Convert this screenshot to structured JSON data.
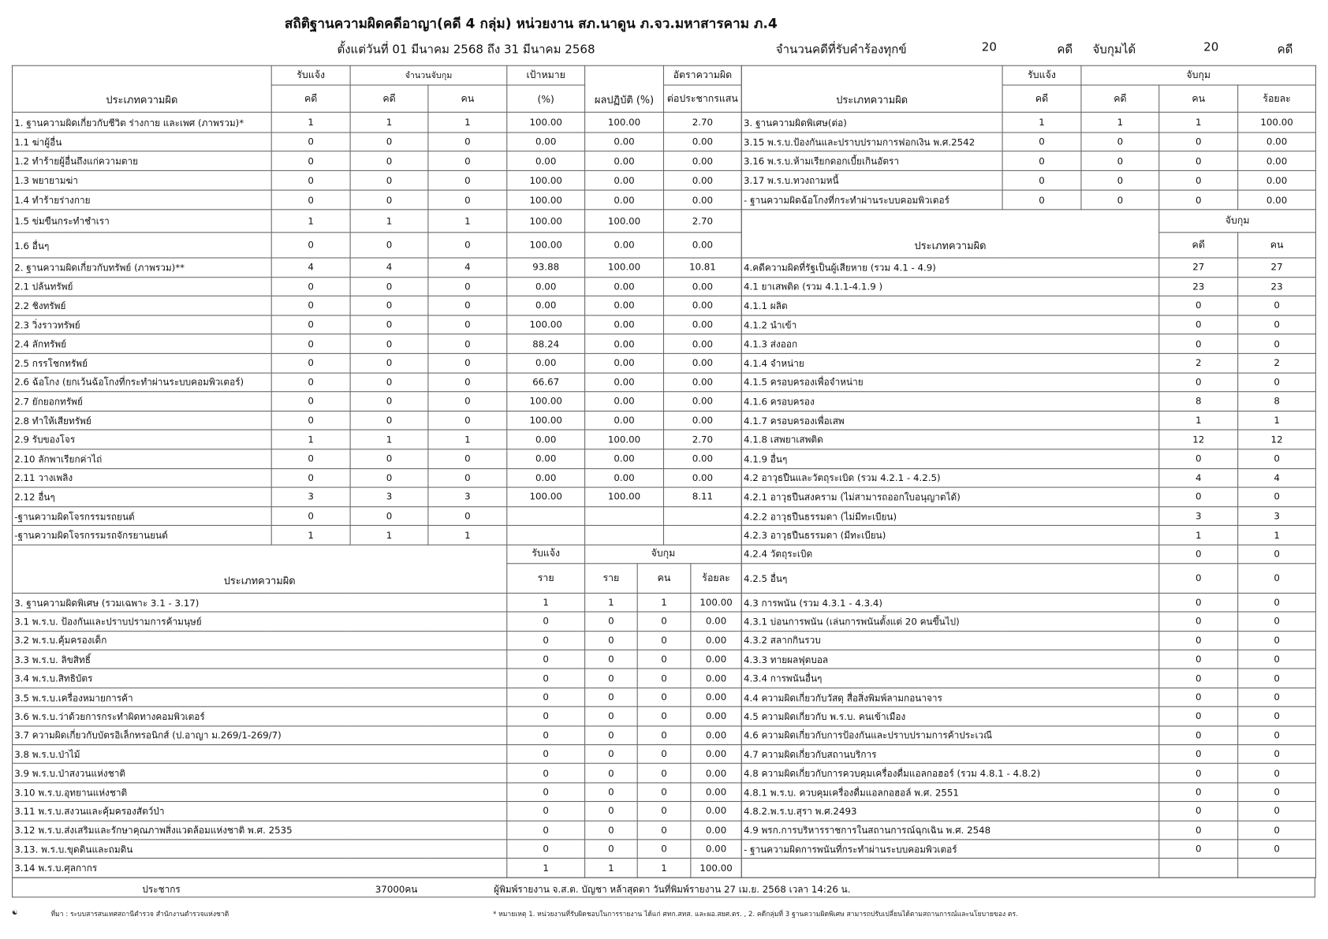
{
  "title": "สถิติฐานความผิดคดีอาญา(คดี 4 กลุ่ม) หน่วยงาน สภ.นาดูน ภ.จว.มหาสารคาม ภ.4",
  "period": "ตั้งแต่วันที่ 01 มีนาคม 2568 ถึง 31 มีนาคม 2568",
  "summary": {
    "received_label": "จำนวนคดีที่รับคำร้องทุกข์",
    "received": "20",
    "unit1": "คดี",
    "arrested_label": "จับกุมได้",
    "arrested": "20",
    "unit2": "คดี"
  },
  "left_header": {
    "type": "ประเภทความผิด",
    "received": "รับแจ้ง",
    "arrest_count": "จำนวนจับกุม",
    "target": "เป้าหมาย",
    "result": "ผลปฏิบัติ (%)",
    "rate": "อัตราความผิด",
    "case": "คดี",
    "case2": "คดี",
    "person": "คน",
    "percent": "(%)",
    "per_pop": "ต่อประชากรแสน"
  },
  "sec1": [
    [
      "1. ฐานความผิดเกี่ยวกับชีวิต ร่างกาย และเพศ (ภาพรวม)*",
      "1",
      "1",
      "1",
      "100.00",
      "100.00",
      "2.70"
    ],
    [
      "1.1 ฆ่าผู้อื่น",
      "0",
      "0",
      "0",
      "0.00",
      "0.00",
      "0.00"
    ],
    [
      "1.2 ทำร้ายผู้อื่นถึงแก่ความตาย",
      "0",
      "0",
      "0",
      "0.00",
      "0.00",
      "0.00"
    ],
    [
      "1.3 พยายามฆ่า",
      "0",
      "0",
      "0",
      "100.00",
      "0.00",
      "0.00"
    ],
    [
      "1.4 ทำร้ายร่างกาย",
      "0",
      "0",
      "0",
      "100.00",
      "0.00",
      "0.00"
    ],
    [
      "1.5 ข่มขืนกระทำชำเรา",
      "1",
      "1",
      "1",
      "100.00",
      "100.00",
      "2.70"
    ],
    [
      "1.6 อื่นๆ",
      "0",
      "0",
      "0",
      "100.00",
      "0.00",
      "0.00"
    ]
  ],
  "sec2": [
    [
      "2. ฐานความผิดเกี่ยวกับทรัพย์ (ภาพรวม)**",
      "4",
      "4",
      "4",
      "93.88",
      "100.00",
      "10.81"
    ],
    [
      "2.1 ปล้นทรัพย์",
      "0",
      "0",
      "0",
      "0.00",
      "0.00",
      "0.00"
    ],
    [
      "2.2 ชิงทรัพย์",
      "0",
      "0",
      "0",
      "0.00",
      "0.00",
      "0.00"
    ],
    [
      "2.3 วิ่งราวทรัพย์",
      "0",
      "0",
      "0",
      "100.00",
      "0.00",
      "0.00"
    ],
    [
      "2.4 ลักทรัพย์",
      "0",
      "0",
      "0",
      "88.24",
      "0.00",
      "0.00"
    ],
    [
      "2.5 กรรโชกทรัพย์",
      "0",
      "0",
      "0",
      "0.00",
      "0.00",
      "0.00"
    ],
    [
      "2.6 ฉ้อโกง (ยกเว้นฉ้อโกงที่กระทำผ่านระบบคอมพิวเตอร์)",
      "0",
      "0",
      "0",
      "66.67",
      "0.00",
      "0.00"
    ],
    [
      "2.7 ยักยอกทรัพย์",
      "0",
      "0",
      "0",
      "100.00",
      "0.00",
      "0.00"
    ],
    [
      "2.8 ทำให้เสียทรัพย์",
      "0",
      "0",
      "0",
      "100.00",
      "0.00",
      "0.00"
    ],
    [
      "2.9 รับของโจร",
      "1",
      "1",
      "1",
      "0.00",
      "100.00",
      "2.70"
    ],
    [
      "2.10 ลักพาเรียกค่าไถ่",
      "0",
      "0",
      "0",
      "0.00",
      "0.00",
      "0.00"
    ],
    [
      "2.11 วางเพลิง",
      "0",
      "0",
      "0",
      "0.00",
      "0.00",
      "0.00"
    ],
    [
      "2.12 อื่นๆ",
      "3",
      "3",
      "3",
      "100.00",
      "100.00",
      "8.11"
    ],
    [
      "-ฐานความผิดโจรกรรมรถยนต์",
      "0",
      "0",
      "0",
      "",
      "",
      ""
    ],
    [
      "-ฐานความผิดโจรกรรมรถจักรยานยนต์",
      "1",
      "1",
      "1",
      "",
      "",
      ""
    ]
  ],
  "left_lower_header": {
    "type": "ประเภทความผิด",
    "received": "รับแจ้ง",
    "arrested": "จับกุม",
    "item": "ราย",
    "item2": "ราย",
    "person": "คน",
    "percent": "ร้อยละ"
  },
  "sec3": [
    [
      "3. ฐานความผิดพิเศษ (รวมเฉพาะ 3.1 - 3.17)",
      "1",
      "1",
      "1",
      "100.00"
    ],
    [
      "3.1 พ.ร.บ. ป้องกันและปราบปรามการค้ามนุษย์",
      "0",
      "0",
      "0",
      "0.00"
    ],
    [
      "3.2 พ.ร.บ.คุ้มครองเด็ก",
      "0",
      "0",
      "0",
      "0.00"
    ],
    [
      "3.3 พ.ร.บ. ลิขสิทธิ์",
      "0",
      "0",
      "0",
      "0.00"
    ],
    [
      "3.4 พ.ร.บ.สิทธิบัตร",
      "0",
      "0",
      "0",
      "0.00"
    ],
    [
      "3.5 พ.ร.บ.เครื่องหมายการค้า",
      "0",
      "0",
      "0",
      "0.00"
    ],
    [
      "3.6 พ.ร.บ.ว่าด้วยการกระทำผิดทางคอมพิวเตอร์",
      "0",
      "0",
      "0",
      "0.00"
    ],
    [
      "3.7 ความผิดเกี่ยวกับบัตรอิเล็กทรอนิกส์  (ป.อาญา ม.269/1-269/7)",
      "0",
      "0",
      "0",
      "0.00"
    ],
    [
      "3.8 พ.ร.บ.ป่าไม้",
      "0",
      "0",
      "0",
      "0.00"
    ],
    [
      "3.9 พ.ร.บ.ป่าสงวนแห่งชาติ",
      "0",
      "0",
      "0",
      "0.00"
    ],
    [
      "3.10 พ.ร.บ.อุทยานแห่งชาติ",
      "0",
      "0",
      "0",
      "0.00"
    ],
    [
      "3.11 พ.ร.บ.สงวนและคุ้มครองสัตว์ป่า",
      "0",
      "0",
      "0",
      "0.00"
    ],
    [
      "3.12 พ.ร.บ.ส่งเสริมและรักษาคุณภาพสิ่งแวดล้อมแห่งชาติ พ.ศ. 2535",
      "0",
      "0",
      "0",
      "0.00"
    ],
    [
      "3.13. พ.ร.บ.ขุดดินและถมดิน",
      "0",
      "0",
      "0",
      "0.00"
    ],
    [
      "3.14 พ.ร.บ.ศุลกากร",
      "1",
      "1",
      "1",
      "100.00"
    ]
  ],
  "right_header": {
    "type": "ประเภทความผิด",
    "received": "รับแจ้ง",
    "arrested": "จับกุม",
    "case": "คดี",
    "case2": "คดี",
    "person": "คน",
    "percent": "ร้อยละ"
  },
  "sec3b": [
    [
      "3. ฐานความผิดพิเศษ(ต่อ)",
      "1",
      "1",
      "1",
      "100.00"
    ],
    [
      "3.15 พ.ร.บ.ป้องกันและปราบปรามการฟอกเงิน พ.ศ.2542",
      "0",
      "0",
      "0",
      "0.00"
    ],
    [
      "3.16 พ.ร.บ.ห้ามเรียกดอกเบี้ยเกินอัตรา",
      "0",
      "0",
      "0",
      "0.00"
    ],
    [
      "3.17 พ.ร.บ.ทวงถามหนี้",
      "0",
      "0",
      "0",
      "0.00"
    ],
    [
      "- ฐานความผิดฉ้อโกงที่กระทำผ่านระบบคอมพิวเตอร์",
      "0",
      "0",
      "0",
      "0.00"
    ]
  ],
  "right_lower_header": {
    "type": "ประเภทความผิด",
    "arrested": "จับกุม",
    "case": "คดี",
    "person": "คน"
  },
  "sec4": [
    [
      "4.คดีความผิดที่รัฐเป็นผู้เสียหาย (รวม 4.1 - 4.9)",
      "27",
      "27"
    ],
    [
      "4.1 ยาเสพติด (รวม 4.1.1-4.1.9 )",
      "23",
      "23"
    ],
    [
      "4.1.1 ผลิต",
      "0",
      "0"
    ],
    [
      "4.1.2 นำเข้า",
      "0",
      "0"
    ],
    [
      "4.1.3 ส่งออก",
      "0",
      "0"
    ],
    [
      "4.1.4 จำหน่าย",
      "2",
      "2"
    ],
    [
      "4.1.5 ครอบครองเพื่อจำหน่าย",
      "0",
      "0"
    ],
    [
      "4.1.6 ครอบครอง",
      "8",
      "8"
    ],
    [
      "4.1.7 ครอบครองเพื่อเสพ",
      "1",
      "1"
    ],
    [
      "4.1.8 เสพยาเสพติด",
      "12",
      "12"
    ],
    [
      "4.1.9 อื่นๆ",
      "0",
      "0"
    ],
    [
      "4.2 อาวุธปืนและวัตถุระเบิด (รวม 4.2.1 - 4.2.5)",
      "4",
      "4"
    ],
    [
      "4.2.1 อาวุธปืนสงคราม (ไม่สามารถออกใบอนุญาตได้)",
      "0",
      "0"
    ],
    [
      "4.2.2 อาวุธปืนธรรมดา (ไม่มีทะเบียน)",
      "3",
      "3"
    ],
    [
      "4.2.3 อาวุธปืนธรรมดา (มีทะเบียน)",
      "1",
      "1"
    ],
    [
      "4.2.4 วัตถุระเบิด",
      "0",
      "0"
    ],
    [
      "4.2.5 อื่นๆ",
      "0",
      "0"
    ],
    [
      "4.3 การพนัน (รวม 4.3.1 - 4.3.4)",
      "0",
      "0"
    ],
    [
      "4.3.1 บ่อนการพนัน (เล่นการพนันตั้งแต่ 20 คนขึ้นไป)",
      "0",
      "0"
    ],
    [
      "4.3.2 สลากกินรวบ",
      "0",
      "0"
    ],
    [
      "4.3.3 ทายผลฟุตบอล",
      "0",
      "0"
    ],
    [
      "4.3.4 การพนันอื่นๆ",
      "0",
      "0"
    ],
    [
      "4.4 ความผิดเกี่ยวกับวัสดุ สื่อสิ่งพิมพ์ลามกอนาจาร",
      "0",
      "0"
    ],
    [
      "4.5 ความผิดเกี่ยวกับ พ.ร.บ. คนเข้าเมือง",
      "0",
      "0"
    ],
    [
      "4.6 ความผิดเกี่ยวกับการป้องกันและปราบปรามการค้าประเวณี",
      "0",
      "0"
    ],
    [
      "4.7 ความผิดเกี่ยวกับสถานบริการ",
      "0",
      "0"
    ],
    [
      "4.8 ความผิดเกี่ยวกับการควบคุมเครื่องดื่มแอลกอฮอร์ (รวม 4.8.1 - 4.8.2)",
      "0",
      "0"
    ],
    [
      "4.8.1 พ.ร.บ. ควบคุมเครื่องดื่มแอลกอฮอล์ พ.ศ. 2551",
      "0",
      "0"
    ],
    [
      "4.8.2.พ.ร.บ.สุรา พ.ศ.2493",
      "0",
      "0"
    ],
    [
      "4.9 พรก.การบริหารราชการในสถานการณ์ฉุกเฉิน พ.ศ. 2548",
      "0",
      "0"
    ],
    [
      "- ฐานความผิดการพนันที่กระทำผ่านระบบคอมพิวเตอร์",
      "0",
      "0"
    ],
    [
      "",
      "",
      ""
    ]
  ],
  "footer": {
    "population_label": "ประชากร",
    "population": "37000คน",
    "reporter": "ผู้พิมพ์รายงาน จ.ส.ต. บัญชา หล้าสุดตา วันที่พิมพ์รายงาน 27 เม.ย. 2568  เวลา 14:26 น."
  },
  "notes": {
    "source": "ที่มา : ระบบสารสนเทศสถานีตำรวจ  สำนักงานตำรวจแห่งชาติ",
    "remark": "* หมายเหตุ   1. หน่วยงานที่รับผิดชอบในการรายงาน ได้แก่ ศทก.สทส. และผอ.สยศ.ตร. , 2. คดีกลุ่มที่ 3 ฐานความผิดพิเศษ สามารถปรับเปลี่ยนได้ตามสถานการณ์และนโยบายของ ตร."
  }
}
